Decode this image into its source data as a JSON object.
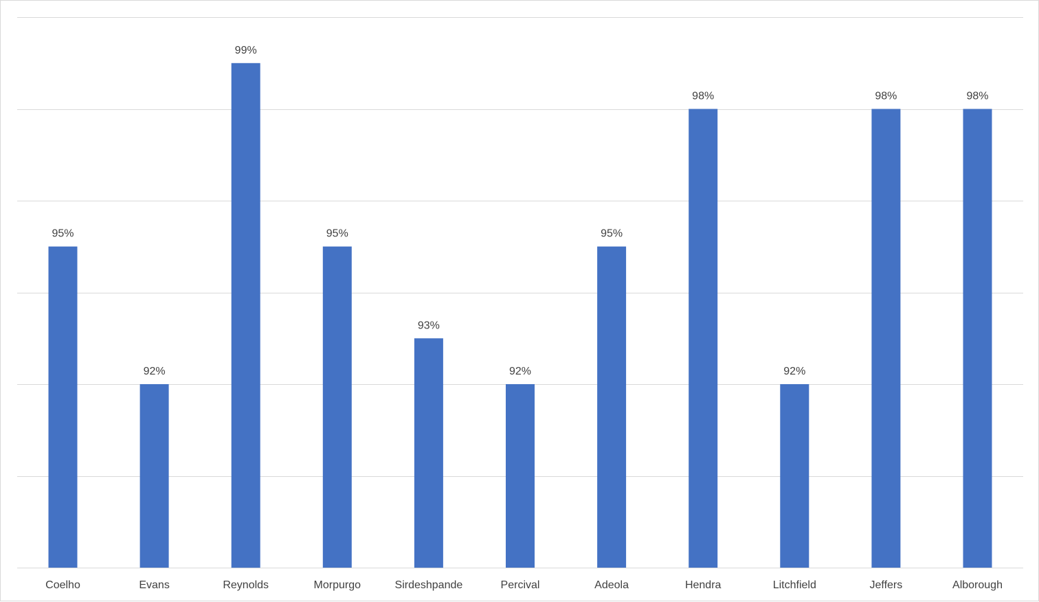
{
  "chart_data": {
    "type": "bar",
    "categories": [
      "Coelho",
      "Evans",
      "Reynolds",
      "Morpurgo",
      "Sirdeshpande",
      "Percival",
      "Adeola",
      "Hendra",
      "Litchfield",
      "Jeffers",
      "Alborough"
    ],
    "values": [
      95,
      92,
      99,
      95,
      93,
      92,
      95,
      98,
      92,
      98,
      98
    ],
    "data_labels": [
      "95%",
      "92%",
      "99%",
      "95%",
      "93%",
      "92%",
      "95%",
      "98%",
      "92%",
      "98%",
      "98%"
    ],
    "title": "",
    "xlabel": "",
    "ylabel": "",
    "ylim": [
      88,
      100
    ],
    "y_axis_labels_visible": false,
    "grid": true,
    "legend": "none",
    "bar_color": "#4472c4",
    "gridline_color": "#d9d9d9",
    "label_color": "#404040"
  }
}
